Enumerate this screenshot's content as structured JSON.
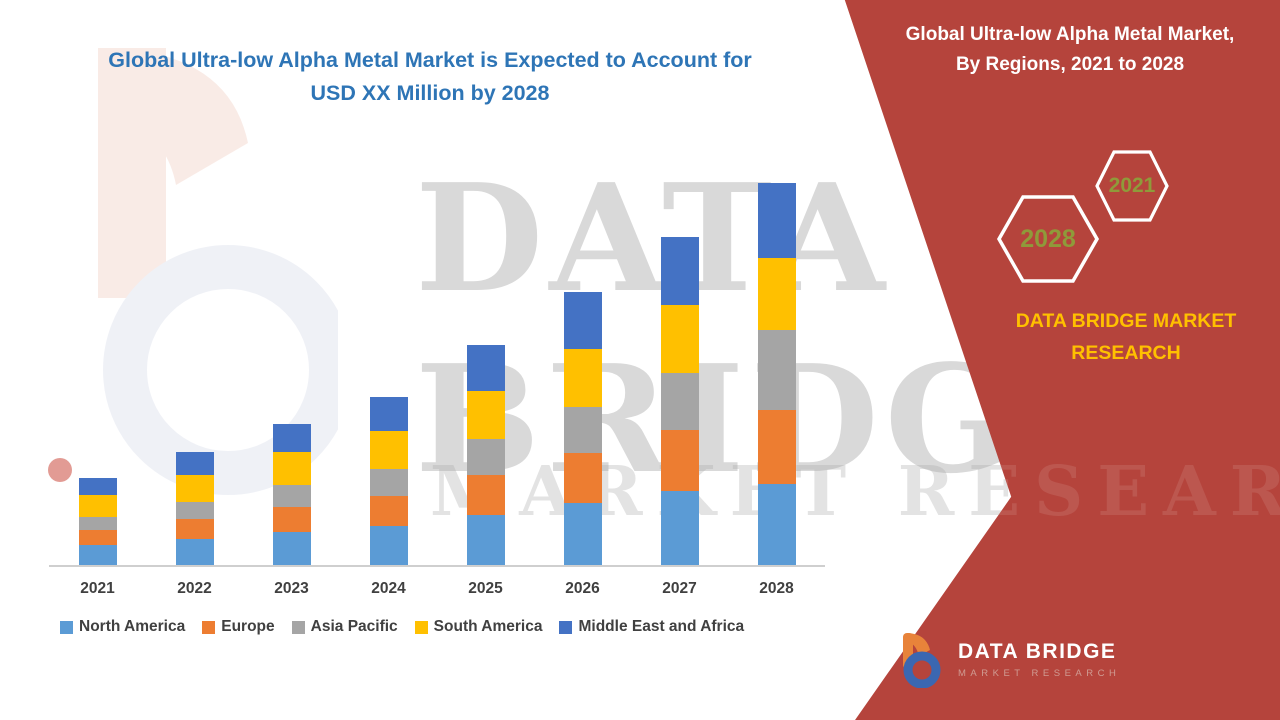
{
  "main_title": {
    "line1": "Global Ultra-low Alpha Metal Market is Expected to Account for",
    "line2": "USD XX Million by 2028"
  },
  "chart_data": {
    "type": "bar",
    "stacked": true,
    "title": "Global Ultra-low Alpha Metal Market, By Regions, 2021 to 2028",
    "xlabel": "",
    "ylabel": "",
    "y_axis_visible": false,
    "ylim": [
      0,
      40
    ],
    "legend_position": "bottom",
    "categories": [
      "2021",
      "2022",
      "2023",
      "2024",
      "2025",
      "2026",
      "2027",
      "2028"
    ],
    "series": [
      {
        "name": "North America",
        "color": "#5b9bd5",
        "values": [
          2.0,
          2.6,
          3.3,
          3.9,
          5.0,
          6.2,
          7.4,
          8.1
        ]
      },
      {
        "name": "Europe",
        "color": "#ed7d31",
        "values": [
          1.5,
          2.0,
          2.5,
          3.0,
          4.0,
          5.0,
          6.1,
          7.4
        ]
      },
      {
        "name": "Asia Pacific",
        "color": "#a5a5a5",
        "values": [
          1.3,
          1.7,
          2.2,
          2.7,
          3.6,
          4.6,
          5.7,
          8.0
        ]
      },
      {
        "name": "South America",
        "color": "#ffc000",
        "values": [
          2.2,
          2.7,
          3.3,
          3.8,
          4.8,
          5.8,
          6.8,
          7.2
        ]
      },
      {
        "name": "Middle East and Africa",
        "color": "#4472c4",
        "values": [
          1.7,
          2.3,
          2.8,
          3.4,
          4.6,
          5.7,
          6.8,
          7.5
        ]
      }
    ]
  },
  "side_panel": {
    "title_line1": "Global Ultra-low Alpha Metal Market,",
    "title_line2": "By Regions, 2021 to 2028",
    "hexagons": [
      {
        "year": "2028"
      },
      {
        "year": "2021"
      }
    ],
    "brand": "DATA BRIDGE MARKET RESEARCH"
  },
  "logo": {
    "name": "DATA BRIDGE",
    "tagline": "MARKET RESEARCH"
  },
  "watermark": {
    "line1": "DATA",
    "line2": "BRIDGE",
    "line3": "MARKET RESEARCH"
  },
  "colors": {
    "panel_red": "#b5443c",
    "title_blue": "#2e75b6",
    "brand_gold": "#ffc000",
    "hexagon_year": "#8f9a3a",
    "axis_text": "#404040"
  }
}
